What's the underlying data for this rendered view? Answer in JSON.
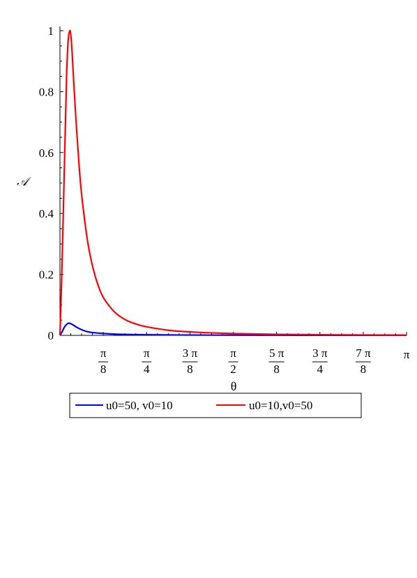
{
  "chart_data": {
    "type": "line",
    "title": "",
    "xlabel": "θ",
    "ylabel": "𝒜",
    "xlim": [
      0,
      3.14159
    ],
    "ylim": [
      0,
      1
    ],
    "grid": false,
    "legend_position": "bottom",
    "x_ticks": [
      {
        "value": 0.3927,
        "num": "π",
        "den": "8"
      },
      {
        "value": 0.7854,
        "num": "π",
        "den": "4"
      },
      {
        "value": 1.1781,
        "num": "3 π",
        "den": "8"
      },
      {
        "value": 1.5708,
        "num": "π",
        "den": "2"
      },
      {
        "value": 1.9635,
        "num": "5 π",
        "den": "8"
      },
      {
        "value": 2.3562,
        "num": "3 π",
        "den": "4"
      },
      {
        "value": 2.7489,
        "num": "7 π",
        "den": "8"
      },
      {
        "value": 3.14159,
        "num": "π",
        "den": ""
      }
    ],
    "y_ticks": [
      "0",
      "0.2",
      "0.4",
      "0.6",
      "0.8",
      "1"
    ],
    "y_tick_values": [
      0,
      0.2,
      0.4,
      0.6,
      0.8,
      1
    ],
    "series": [
      {
        "name": "u0=50, v0=10",
        "color": "#0000ff",
        "x": [
          0,
          0.02,
          0.04,
          0.06,
          0.08,
          0.1,
          0.12,
          0.15,
          0.2,
          0.25,
          0.3,
          0.4,
          0.5,
          0.6,
          0.8,
          1.0,
          1.2,
          1.5,
          2.0,
          2.5,
          3.14159
        ],
        "y": [
          0,
          0.012,
          0.027,
          0.036,
          0.04,
          0.038,
          0.034,
          0.027,
          0.018,
          0.012,
          0.009,
          0.006,
          0.004,
          0.003,
          0.002,
          0.0015,
          0.001,
          0.0007,
          0.0004,
          0.0002,
          0.0001
        ]
      },
      {
        "name": "u0=10,v0=50",
        "color": "#ff0000",
        "x": [
          0,
          0.02,
          0.04,
          0.06,
          0.075,
          0.09,
          0.1,
          0.11,
          0.125,
          0.15,
          0.175,
          0.2,
          0.25,
          0.3,
          0.35,
          0.4,
          0.5,
          0.6,
          0.7,
          0.8,
          1.0,
          1.2,
          1.5,
          1.8,
          2.0,
          2.5,
          3.14159
        ],
        "y": [
          0,
          0.25,
          0.55,
          0.85,
          0.97,
          1.0,
          0.98,
          0.93,
          0.83,
          0.68,
          0.55,
          0.45,
          0.31,
          0.22,
          0.16,
          0.12,
          0.075,
          0.05,
          0.036,
          0.027,
          0.016,
          0.011,
          0.0065,
          0.0042,
          0.0033,
          0.0018,
          0.0008
        ]
      }
    ]
  }
}
